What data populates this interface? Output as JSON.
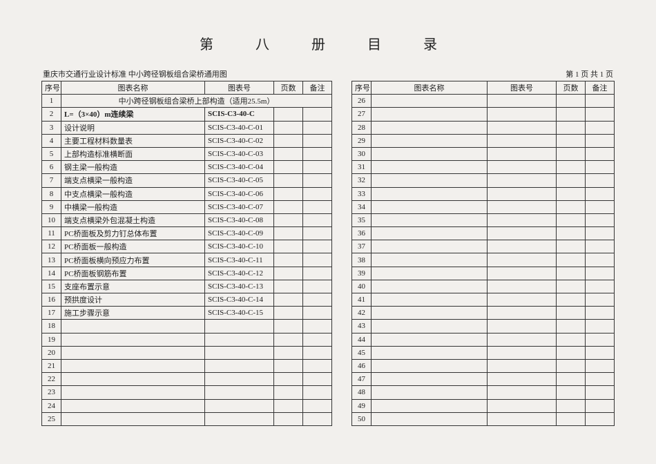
{
  "title": "第 八 册 目 录",
  "subheader_left": "重庆市交通行业设计标准  中小跨径钢板组合梁桥通用图",
  "subheader_right": "第 1 页  共 1 页",
  "headers": {
    "seq": "序号",
    "name": "图表名称",
    "code": "图表号",
    "page": "页数",
    "note": "备注"
  },
  "left_rows": [
    {
      "seq": "1",
      "span_name": "中小跨径钢板组合梁桥上部构造（适用25.5m）"
    },
    {
      "seq": "2",
      "name": "L=（3×40）m连续梁",
      "code": "SCIS-C3-40-C",
      "bold": true
    },
    {
      "seq": "3",
      "name": "设计说明",
      "code": "SCIS-C3-40-C-01"
    },
    {
      "seq": "4",
      "name": "主要工程材料数量表",
      "code": "SCIS-C3-40-C-02"
    },
    {
      "seq": "5",
      "name": "上部构造标准横断面",
      "code": "SCIS-C3-40-C-03"
    },
    {
      "seq": "6",
      "name": "钢主梁一般构造",
      "code": "SCIS-C3-40-C-04"
    },
    {
      "seq": "7",
      "name": "端支点横梁一般构造",
      "code": "SCIS-C3-40-C-05"
    },
    {
      "seq": "8",
      "name": "中支点横梁一般构造",
      "code": "SCIS-C3-40-C-06"
    },
    {
      "seq": "9",
      "name": "中横梁一般构造",
      "code": "SCIS-C3-40-C-07"
    },
    {
      "seq": "10",
      "name": "端支点横梁外包混凝土构造",
      "code": "SCIS-C3-40-C-08"
    },
    {
      "seq": "11",
      "name": "PC桥面板及剪力钉总体布置",
      "code": "SCIS-C3-40-C-09"
    },
    {
      "seq": "12",
      "name": "PC桥面板一般构造",
      "code": "SCIS-C3-40-C-10"
    },
    {
      "seq": "13",
      "name": "PC桥面板横向预应力布置",
      "code": "SCIS-C3-40-C-11"
    },
    {
      "seq": "14",
      "name": "PC桥面板钢筋布置",
      "code": "SCIS-C3-40-C-12"
    },
    {
      "seq": "15",
      "name": "支座布置示意",
      "code": "SCIS-C3-40-C-13"
    },
    {
      "seq": "16",
      "name": "预拱度设计",
      "code": "SCIS-C3-40-C-14"
    },
    {
      "seq": "17",
      "name": "施工步骤示意",
      "code": "SCIS-C3-40-C-15"
    },
    {
      "seq": "18"
    },
    {
      "seq": "19"
    },
    {
      "seq": "20"
    },
    {
      "seq": "21"
    },
    {
      "seq": "22"
    },
    {
      "seq": "23"
    },
    {
      "seq": "24"
    },
    {
      "seq": "25"
    }
  ],
  "right_rows": [
    {
      "seq": "26"
    },
    {
      "seq": "27"
    },
    {
      "seq": "28"
    },
    {
      "seq": "29"
    },
    {
      "seq": "30"
    },
    {
      "seq": "31"
    },
    {
      "seq": "32"
    },
    {
      "seq": "33"
    },
    {
      "seq": "34"
    },
    {
      "seq": "35"
    },
    {
      "seq": "36"
    },
    {
      "seq": "37"
    },
    {
      "seq": "38"
    },
    {
      "seq": "39"
    },
    {
      "seq": "40"
    },
    {
      "seq": "41"
    },
    {
      "seq": "42"
    },
    {
      "seq": "43"
    },
    {
      "seq": "44"
    },
    {
      "seq": "45"
    },
    {
      "seq": "46"
    },
    {
      "seq": "47"
    },
    {
      "seq": "48"
    },
    {
      "seq": "49"
    },
    {
      "seq": "50"
    }
  ]
}
